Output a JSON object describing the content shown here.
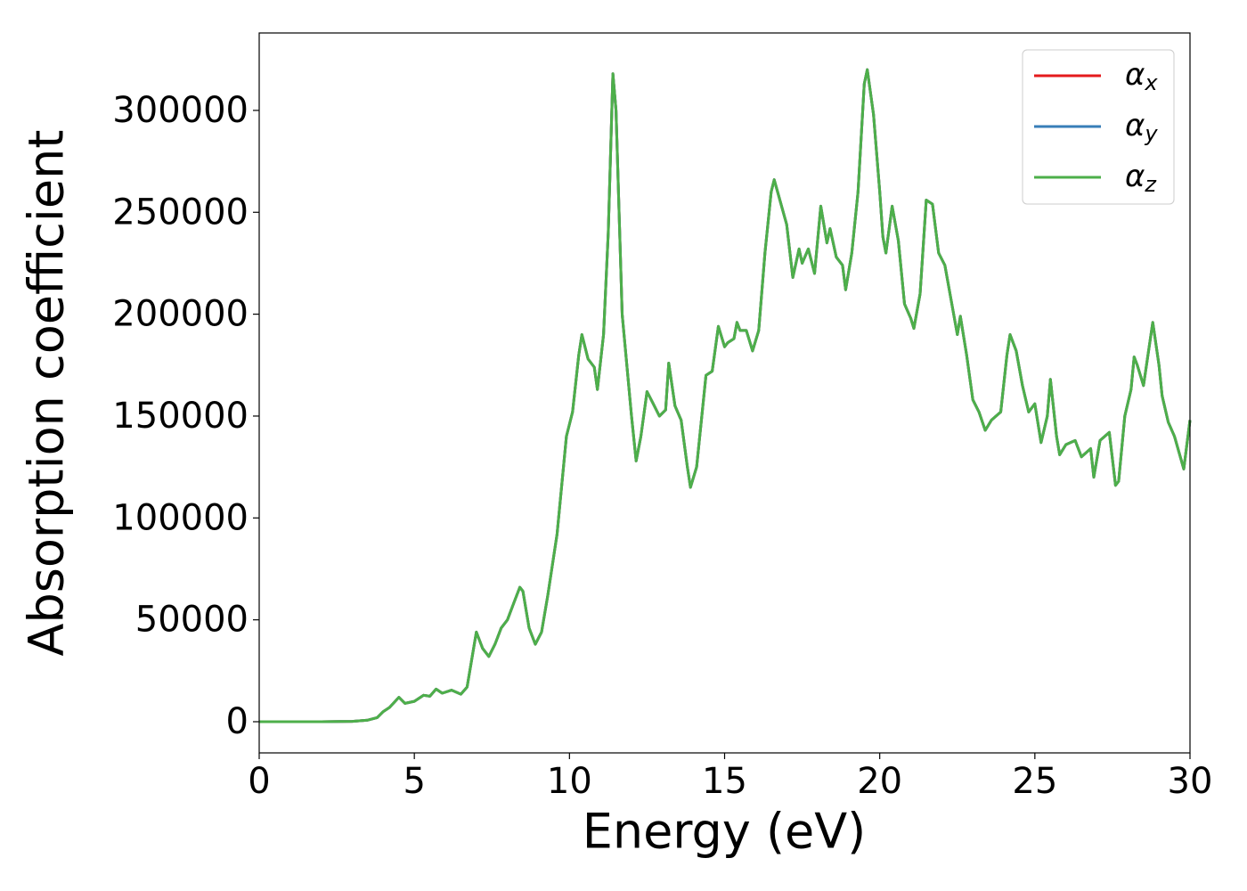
{
  "chart_data": {
    "type": "line",
    "xlabel": "Energy (eV)",
    "ylabel": "Absorption coefficient",
    "x": [
      0,
      1,
      2,
      3,
      3.5,
      3.8,
      4.0,
      4.2,
      4.5,
      4.7,
      5.0,
      5.3,
      5.5,
      5.7,
      5.9,
      6.2,
      6.5,
      6.7,
      7.0,
      7.2,
      7.4,
      7.6,
      7.8,
      8.0,
      8.2,
      8.4,
      8.5,
      8.7,
      8.9,
      9.1,
      9.3,
      9.6,
      9.9,
      10.1,
      10.3,
      10.4,
      10.6,
      10.8,
      10.9,
      11.1,
      11.25,
      11.4,
      11.5,
      11.7,
      12.0,
      12.15,
      12.3,
      12.5,
      12.7,
      12.9,
      13.1,
      13.2,
      13.4,
      13.6,
      13.8,
      13.9,
      14.1,
      14.3,
      14.4,
      14.6,
      14.8,
      15.0,
      15.1,
      15.3,
      15.4,
      15.5,
      15.7,
      15.9,
      16.1,
      16.3,
      16.5,
      16.6,
      16.8,
      17.0,
      17.2,
      17.4,
      17.5,
      17.7,
      17.9,
      18.1,
      18.3,
      18.4,
      18.6,
      18.8,
      18.9,
      19.1,
      19.3,
      19.5,
      19.6,
      19.8,
      20.0,
      20.1,
      20.2,
      20.4,
      20.6,
      20.8,
      21.0,
      21.1,
      21.3,
      21.5,
      21.7,
      21.9,
      22.1,
      22.3,
      22.5,
      22.6,
      22.8,
      23.0,
      23.2,
      23.4,
      23.6,
      23.9,
      24.1,
      24.2,
      24.4,
      24.6,
      24.8,
      25.0,
      25.2,
      25.4,
      25.5,
      25.7,
      25.8,
      26.0,
      26.3,
      26.5,
      26.8,
      26.9,
      27.1,
      27.4,
      27.6,
      27.7,
      27.9,
      28.1,
      28.2,
      28.3,
      28.5,
      28.8,
      29.0,
      29.1,
      29.3,
      29.5,
      29.8,
      30.0
    ],
    "series": [
      {
        "name": "αx",
        "color": "#e41a1c",
        "values": [
          0,
          0,
          0,
          200,
          800,
          2000,
          5000,
          7000,
          12000,
          9000,
          10000,
          13000,
          12500,
          16000,
          14000,
          15500,
          13500,
          17000,
          44000,
          36000,
          32000,
          38000,
          46000,
          50000,
          58000,
          66000,
          64000,
          46000,
          38000,
          44000,
          62000,
          92000,
          140000,
          152000,
          180000,
          190000,
          178000,
          174000,
          163000,
          190000,
          240000,
          318000,
          300000,
          200000,
          150000,
          128000,
          140000,
          162000,
          156000,
          150000,
          153000,
          176000,
          155000,
          148000,
          125000,
          115000,
          125000,
          155000,
          170000,
          172000,
          194000,
          184000,
          186000,
          188000,
          196000,
          192000,
          192000,
          182000,
          192000,
          230000,
          260000,
          266000,
          255000,
          244000,
          218000,
          232000,
          225000,
          232000,
          220000,
          253000,
          235000,
          242000,
          228000,
          224000,
          212000,
          230000,
          260000,
          313000,
          320000,
          298000,
          260000,
          238000,
          230000,
          253000,
          236000,
          205000,
          198000,
          193000,
          210000,
          256000,
          254000,
          230000,
          224000,
          207000,
          190000,
          199000,
          180000,
          158000,
          152000,
          143000,
          148000,
          152000,
          180000,
          190000,
          182000,
          165000,
          152000,
          156000,
          137000,
          150000,
          168000,
          140000,
          131000,
          136000,
          138000,
          130000,
          134000,
          120000,
          138000,
          142000,
          116000,
          118000,
          150000,
          163000,
          179000,
          175000,
          165000,
          196000,
          175000,
          160000,
          147000,
          140000,
          124000,
          148000
        ]
      },
      {
        "name": "αy",
        "color": "#377eb8",
        "values": [
          0,
          0,
          0,
          200,
          800,
          2000,
          5000,
          7000,
          12000,
          9000,
          10000,
          13000,
          12500,
          16000,
          14000,
          15500,
          13500,
          17000,
          44000,
          36000,
          32000,
          38000,
          46000,
          50000,
          58000,
          66000,
          64000,
          46000,
          38000,
          44000,
          62000,
          92000,
          140000,
          152000,
          180000,
          190000,
          178000,
          174000,
          163000,
          190000,
          240000,
          318000,
          300000,
          200000,
          150000,
          128000,
          140000,
          162000,
          156000,
          150000,
          153000,
          176000,
          155000,
          148000,
          125000,
          115000,
          125000,
          155000,
          170000,
          172000,
          194000,
          184000,
          186000,
          188000,
          196000,
          192000,
          192000,
          182000,
          192000,
          230000,
          260000,
          266000,
          255000,
          244000,
          218000,
          232000,
          225000,
          232000,
          220000,
          253000,
          235000,
          242000,
          228000,
          224000,
          212000,
          230000,
          260000,
          313000,
          320000,
          298000,
          260000,
          238000,
          230000,
          253000,
          236000,
          205000,
          198000,
          193000,
          210000,
          256000,
          254000,
          230000,
          224000,
          207000,
          190000,
          199000,
          180000,
          158000,
          152000,
          143000,
          148000,
          152000,
          180000,
          190000,
          182000,
          165000,
          152000,
          156000,
          137000,
          150000,
          168000,
          140000,
          131000,
          136000,
          138000,
          130000,
          134000,
          120000,
          138000,
          142000,
          116000,
          118000,
          150000,
          163000,
          179000,
          175000,
          165000,
          196000,
          175000,
          160000,
          147000,
          140000,
          124000,
          148000
        ]
      },
      {
        "name": "αz",
        "color": "#4daf4a",
        "values": [
          0,
          0,
          0,
          200,
          800,
          2000,
          5000,
          7000,
          12000,
          9000,
          10000,
          13000,
          12500,
          16000,
          14000,
          15500,
          13500,
          17000,
          44000,
          36000,
          32000,
          38000,
          46000,
          50000,
          58000,
          66000,
          64000,
          46000,
          38000,
          44000,
          62000,
          92000,
          140000,
          152000,
          180000,
          190000,
          178000,
          174000,
          163000,
          190000,
          240000,
          318000,
          300000,
          200000,
          150000,
          128000,
          140000,
          162000,
          156000,
          150000,
          153000,
          176000,
          155000,
          148000,
          125000,
          115000,
          125000,
          155000,
          170000,
          172000,
          194000,
          184000,
          186000,
          188000,
          196000,
          192000,
          192000,
          182000,
          192000,
          230000,
          260000,
          266000,
          255000,
          244000,
          218000,
          232000,
          225000,
          232000,
          220000,
          253000,
          235000,
          242000,
          228000,
          224000,
          212000,
          230000,
          260000,
          313000,
          320000,
          298000,
          260000,
          238000,
          230000,
          253000,
          236000,
          205000,
          198000,
          193000,
          210000,
          256000,
          254000,
          230000,
          224000,
          207000,
          190000,
          199000,
          180000,
          158000,
          152000,
          143000,
          148000,
          152000,
          180000,
          190000,
          182000,
          165000,
          152000,
          156000,
          137000,
          150000,
          168000,
          140000,
          131000,
          136000,
          138000,
          130000,
          134000,
          120000,
          138000,
          142000,
          116000,
          118000,
          150000,
          163000,
          179000,
          175000,
          165000,
          196000,
          175000,
          160000,
          147000,
          140000,
          124000,
          148000
        ]
      }
    ],
    "xlim": [
      0,
      30
    ],
    "xticks": [
      0,
      5,
      10,
      15,
      20,
      25,
      30
    ],
    "ylim": [
      -15300,
      338000
    ],
    "yticks": [
      0,
      50000,
      100000,
      150000,
      200000,
      250000,
      300000
    ],
    "grid": false,
    "legend": "upper right"
  }
}
